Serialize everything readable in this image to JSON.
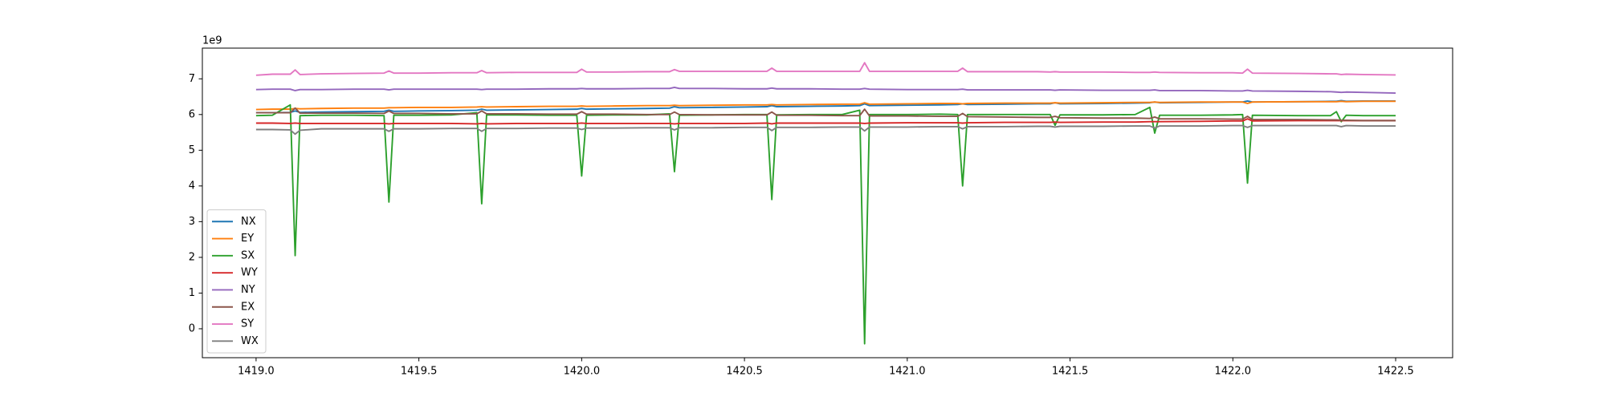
{
  "chart_data": {
    "type": "line",
    "offset_label": "1e9",
    "x": [
      1419.0,
      1419.05,
      1419.105,
      1419.12,
      1419.135,
      1419.2,
      1419.3,
      1419.393,
      1419.408,
      1419.423,
      1419.5,
      1419.6,
      1419.678,
      1419.693,
      1419.708,
      1419.8,
      1419.9,
      1419.985,
      1420.0,
      1420.015,
      1420.1,
      1420.2,
      1420.27,
      1420.285,
      1420.3,
      1420.4,
      1420.5,
      1420.569,
      1420.584,
      1420.599,
      1420.7,
      1420.8,
      1420.854,
      1420.869,
      1420.884,
      1421.0,
      1421.1,
      1421.155,
      1421.17,
      1421.185,
      1421.3,
      1421.4,
      1421.439,
      1421.454,
      1421.469,
      1421.6,
      1421.7,
      1421.745,
      1421.76,
      1421.775,
      1421.9,
      1422.0,
      1422.03,
      1422.045,
      1422.06,
      1422.2,
      1422.3,
      1422.318,
      1422.333,
      1422.348,
      1422.4,
      1422.5
    ],
    "series": [
      {
        "name": "NX",
        "color": "#1f77b4",
        "values": [
          6.05,
          6.05,
          6.06,
          6.1,
          6.06,
          6.07,
          6.08,
          6.09,
          6.12,
          6.09,
          6.1,
          6.11,
          6.12,
          6.15,
          6.12,
          6.13,
          6.14,
          6.15,
          6.17,
          6.15,
          6.16,
          6.17,
          6.18,
          6.22,
          6.19,
          6.2,
          6.21,
          6.22,
          6.25,
          6.22,
          6.23,
          6.24,
          6.25,
          6.3,
          6.25,
          6.26,
          6.27,
          6.28,
          6.3,
          6.28,
          6.29,
          6.3,
          6.3,
          6.33,
          6.3,
          6.31,
          6.32,
          6.33,
          6.35,
          6.33,
          6.34,
          6.35,
          6.35,
          6.38,
          6.35,
          6.36,
          6.37,
          6.37,
          6.39,
          6.37,
          6.38,
          6.38
        ]
      },
      {
        "name": "EY",
        "color": "#ff7f0e",
        "values": [
          6.14,
          6.15,
          6.15,
          6.17,
          6.16,
          6.17,
          6.18,
          6.18,
          6.19,
          6.19,
          6.2,
          6.2,
          6.21,
          6.22,
          6.21,
          6.22,
          6.23,
          6.23,
          6.24,
          6.23,
          6.24,
          6.25,
          6.25,
          6.26,
          6.25,
          6.26,
          6.27,
          6.27,
          6.28,
          6.27,
          6.28,
          6.29,
          6.29,
          6.33,
          6.29,
          6.3,
          6.31,
          6.31,
          6.3,
          6.31,
          6.32,
          6.32,
          6.32,
          6.33,
          6.32,
          6.33,
          6.34,
          6.34,
          6.35,
          6.34,
          6.35,
          6.35,
          6.35,
          6.31,
          6.35,
          6.36,
          6.36,
          6.36,
          6.37,
          6.36,
          6.37,
          6.37
        ]
      },
      {
        "name": "SX",
        "color": "#2ca02c",
        "values": [
          5.97,
          5.98,
          6.27,
          2.05,
          5.97,
          5.98,
          5.98,
          5.97,
          3.55,
          5.98,
          5.98,
          5.99,
          6.05,
          3.5,
          5.99,
          5.99,
          5.98,
          5.98,
          4.28,
          5.98,
          5.99,
          5.99,
          6.02,
          4.4,
          5.98,
          5.99,
          6.0,
          6.0,
          3.62,
          5.99,
          6.0,
          6.0,
          6.12,
          -0.42,
          6.0,
          6.0,
          6.01,
          6.0,
          4.0,
          6.0,
          6.0,
          6.0,
          6.0,
          5.7,
          5.99,
          5.99,
          6.0,
          6.2,
          5.48,
          5.98,
          5.98,
          5.99,
          6.0,
          4.08,
          5.98,
          5.97,
          5.97,
          6.08,
          5.8,
          5.98,
          5.97,
          5.97
        ]
      },
      {
        "name": "WY",
        "color": "#d62728",
        "values": [
          5.76,
          5.76,
          5.75,
          5.76,
          5.75,
          5.75,
          5.75,
          5.75,
          5.74,
          5.75,
          5.75,
          5.75,
          5.74,
          5.75,
          5.74,
          5.75,
          5.75,
          5.75,
          5.76,
          5.75,
          5.75,
          5.75,
          5.75,
          5.74,
          5.75,
          5.75,
          5.75,
          5.76,
          5.74,
          5.76,
          5.76,
          5.76,
          5.76,
          5.75,
          5.76,
          5.77,
          5.77,
          5.77,
          5.76,
          5.77,
          5.78,
          5.78,
          5.78,
          5.79,
          5.78,
          5.79,
          5.79,
          5.8,
          5.8,
          5.8,
          5.81,
          5.82,
          5.82,
          5.88,
          5.82,
          5.83,
          5.83,
          5.83,
          5.83,
          5.83,
          5.83,
          5.83
        ]
      },
      {
        "name": "NY",
        "color": "#9467bd",
        "values": [
          6.7,
          6.71,
          6.71,
          6.67,
          6.7,
          6.7,
          6.71,
          6.71,
          6.69,
          6.71,
          6.71,
          6.71,
          6.71,
          6.7,
          6.71,
          6.71,
          6.72,
          6.72,
          6.73,
          6.72,
          6.72,
          6.73,
          6.73,
          6.76,
          6.73,
          6.73,
          6.72,
          6.72,
          6.74,
          6.72,
          6.72,
          6.71,
          6.71,
          6.73,
          6.71,
          6.7,
          6.7,
          6.7,
          6.71,
          6.69,
          6.69,
          6.69,
          6.69,
          6.68,
          6.69,
          6.68,
          6.68,
          6.68,
          6.69,
          6.67,
          6.67,
          6.66,
          6.66,
          6.68,
          6.66,
          6.65,
          6.64,
          6.63,
          6.62,
          6.63,
          6.62,
          6.6
        ]
      },
      {
        "name": "EX",
        "color": "#8c564b",
        "values": [
          6.05,
          6.05,
          6.05,
          6.18,
          6.04,
          6.04,
          6.04,
          6.03,
          6.1,
          6.03,
          6.03,
          6.02,
          6.02,
          6.1,
          6.02,
          6.02,
          6.01,
          6.01,
          6.08,
          6.01,
          6.01,
          6.0,
          6.0,
          6.07,
          6.0,
          5.99,
          5.99,
          5.99,
          6.07,
          5.98,
          5.98,
          5.97,
          5.97,
          6.15,
          5.96,
          5.96,
          5.95,
          5.95,
          6.03,
          5.94,
          5.93,
          5.92,
          5.92,
          5.95,
          5.91,
          5.9,
          5.9,
          5.89,
          5.93,
          5.88,
          5.88,
          5.87,
          5.87,
          5.95,
          5.86,
          5.86,
          5.85,
          5.85,
          5.84,
          5.84,
          5.83,
          5.83
        ]
      },
      {
        "name": "SY",
        "color": "#e377c2",
        "values": [
          7.1,
          7.13,
          7.13,
          7.25,
          7.12,
          7.14,
          7.15,
          7.16,
          7.22,
          7.16,
          7.16,
          7.17,
          7.17,
          7.23,
          7.17,
          7.18,
          7.18,
          7.18,
          7.27,
          7.19,
          7.19,
          7.2,
          7.2,
          7.26,
          7.21,
          7.21,
          7.21,
          7.21,
          7.3,
          7.21,
          7.21,
          7.21,
          7.21,
          7.45,
          7.21,
          7.21,
          7.21,
          7.21,
          7.3,
          7.2,
          7.2,
          7.2,
          7.19,
          7.2,
          7.19,
          7.19,
          7.18,
          7.18,
          7.19,
          7.18,
          7.17,
          7.17,
          7.16,
          7.27,
          7.16,
          7.15,
          7.14,
          7.14,
          7.12,
          7.13,
          7.12,
          7.11
        ]
      },
      {
        "name": "WX",
        "color": "#7f7f7f",
        "values": [
          5.58,
          5.58,
          5.57,
          5.45,
          5.56,
          5.6,
          5.6,
          5.6,
          5.53,
          5.6,
          5.6,
          5.61,
          5.61,
          5.53,
          5.61,
          5.61,
          5.62,
          5.62,
          5.58,
          5.62,
          5.62,
          5.63,
          5.63,
          5.57,
          5.63,
          5.63,
          5.64,
          5.64,
          5.55,
          5.64,
          5.64,
          5.65,
          5.65,
          5.54,
          5.65,
          5.65,
          5.66,
          5.66,
          5.6,
          5.66,
          5.66,
          5.67,
          5.67,
          5.65,
          5.67,
          5.67,
          5.68,
          5.68,
          5.62,
          5.68,
          5.68,
          5.69,
          5.69,
          5.64,
          5.69,
          5.69,
          5.69,
          5.69,
          5.66,
          5.69,
          5.68,
          5.68
        ]
      }
    ],
    "xlim": [
      1418.835,
      1422.675
    ],
    "ylim": [
      -0.81,
      7.86
    ],
    "xticks": [
      {
        "value": 1419,
        "label": "1419.0"
      },
      {
        "value": 1419.5,
        "label": "1419.5"
      },
      {
        "value": 1420,
        "label": "1420.0"
      },
      {
        "value": 1420.5,
        "label": "1420.5"
      },
      {
        "value": 1421,
        "label": "1421.0"
      },
      {
        "value": 1421.5,
        "label": "1421.5"
      },
      {
        "value": 1422,
        "label": "1422.0"
      },
      {
        "value": 1422.5,
        "label": "1422.5"
      }
    ],
    "yticks": [
      0,
      1,
      2,
      3,
      4,
      5,
      6,
      7
    ],
    "grid": false,
    "legend": "lower left"
  }
}
